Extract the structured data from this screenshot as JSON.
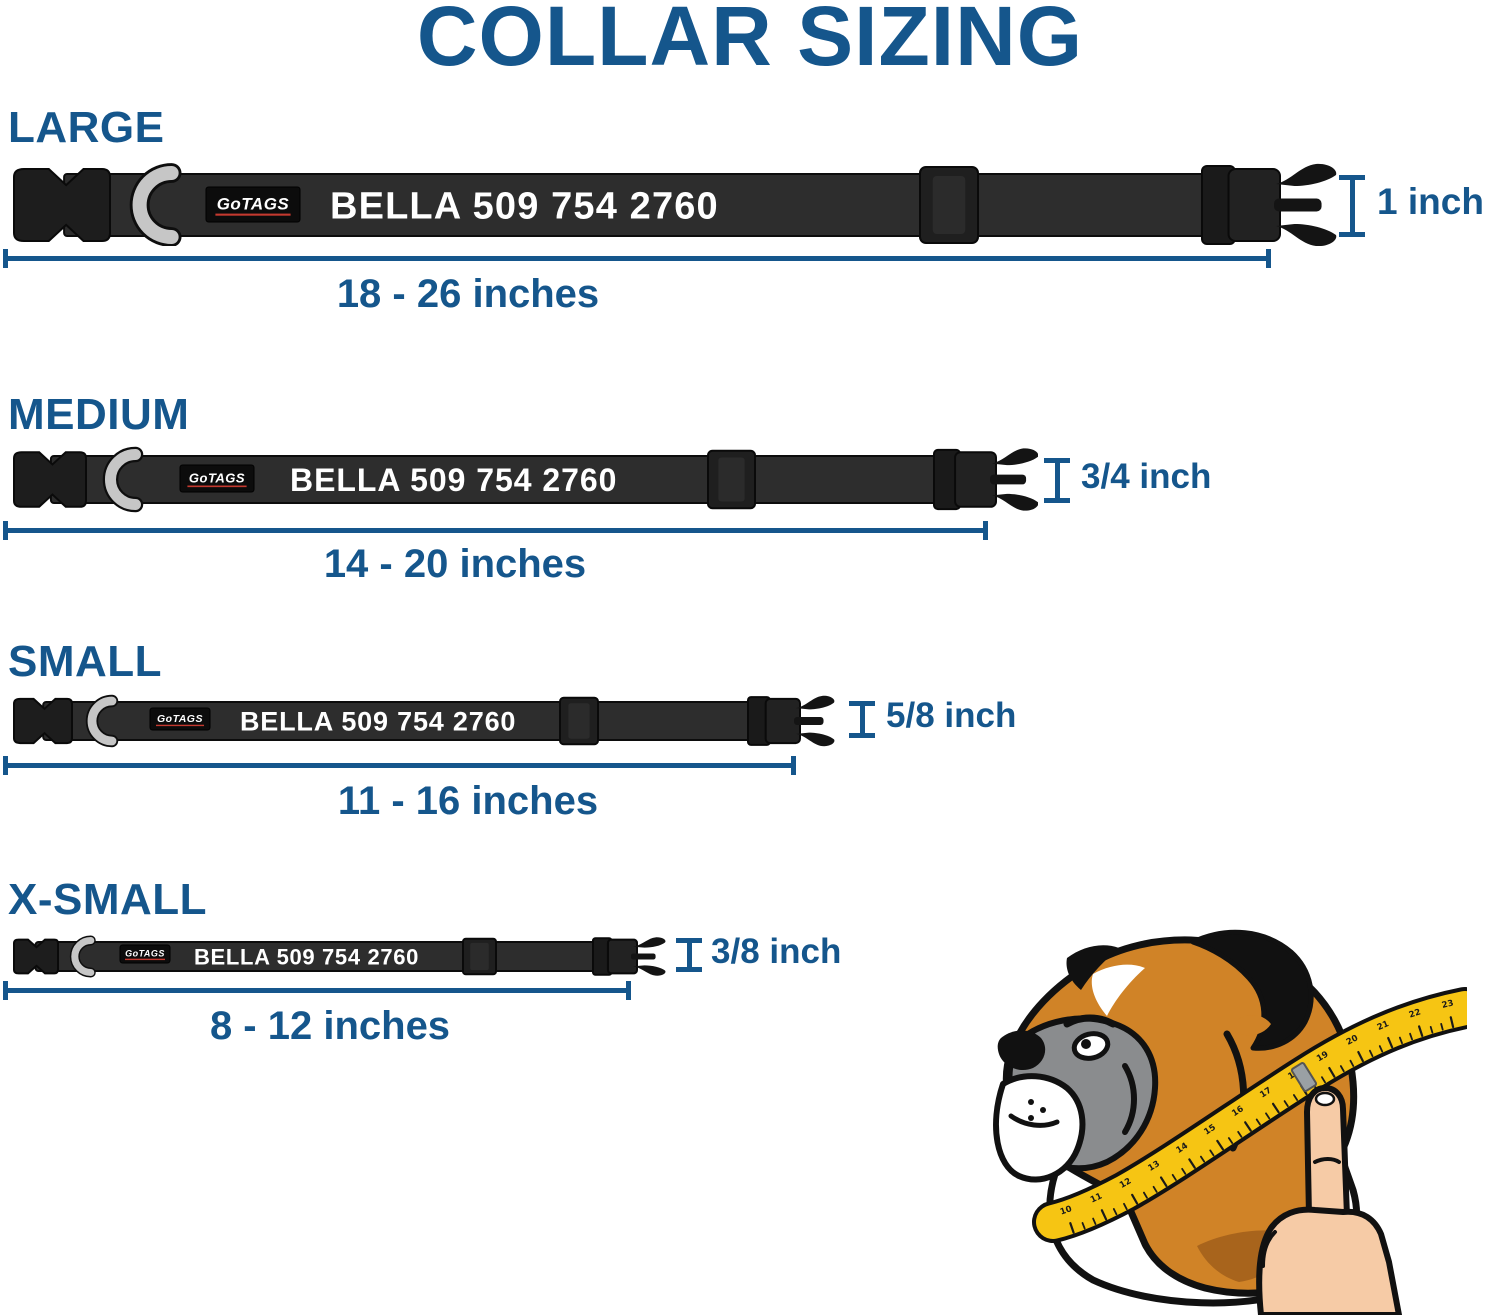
{
  "title": "COLLAR SIZING",
  "collar": {
    "logo_text": "GoTAGS",
    "personalization_text": "BELLA 509 754 2760"
  },
  "sizes": [
    {
      "label": "LARGE",
      "width_label": "1 inch",
      "range_label": "18 - 26 inches"
    },
    {
      "label": "MEDIUM",
      "width_label": "3/4 inch",
      "range_label": "14 - 20 inches"
    },
    {
      "label": "SMALL",
      "width_label": "5/8 inch",
      "range_label": "11 - 16 inches"
    },
    {
      "label": "X-SMALL",
      "width_label": "3/8 inch",
      "range_label": "8 - 12 inches"
    }
  ],
  "illustration": {
    "name": "boxer-dog-head-with-measuring-tape",
    "tape_numbers": [
      "10",
      "11",
      "12",
      "13",
      "14",
      "15",
      "16",
      "17",
      "18",
      "19",
      "20",
      "21",
      "22",
      "23"
    ]
  },
  "colors": {
    "accent_blue": "#15568C",
    "strap_black": "#2D2D2D",
    "hardware_black": "#1B1B1B",
    "dring_gray": "#C6C6C6",
    "logo_red": "#C4392F",
    "text_white": "#FFFFFF",
    "fur_brown": "#D08327",
    "fur_shadow": "#A8641C",
    "mask_gray": "#8A8C8E",
    "tape_yellow": "#F6C513",
    "hand_skin": "#F6CBA6"
  }
}
